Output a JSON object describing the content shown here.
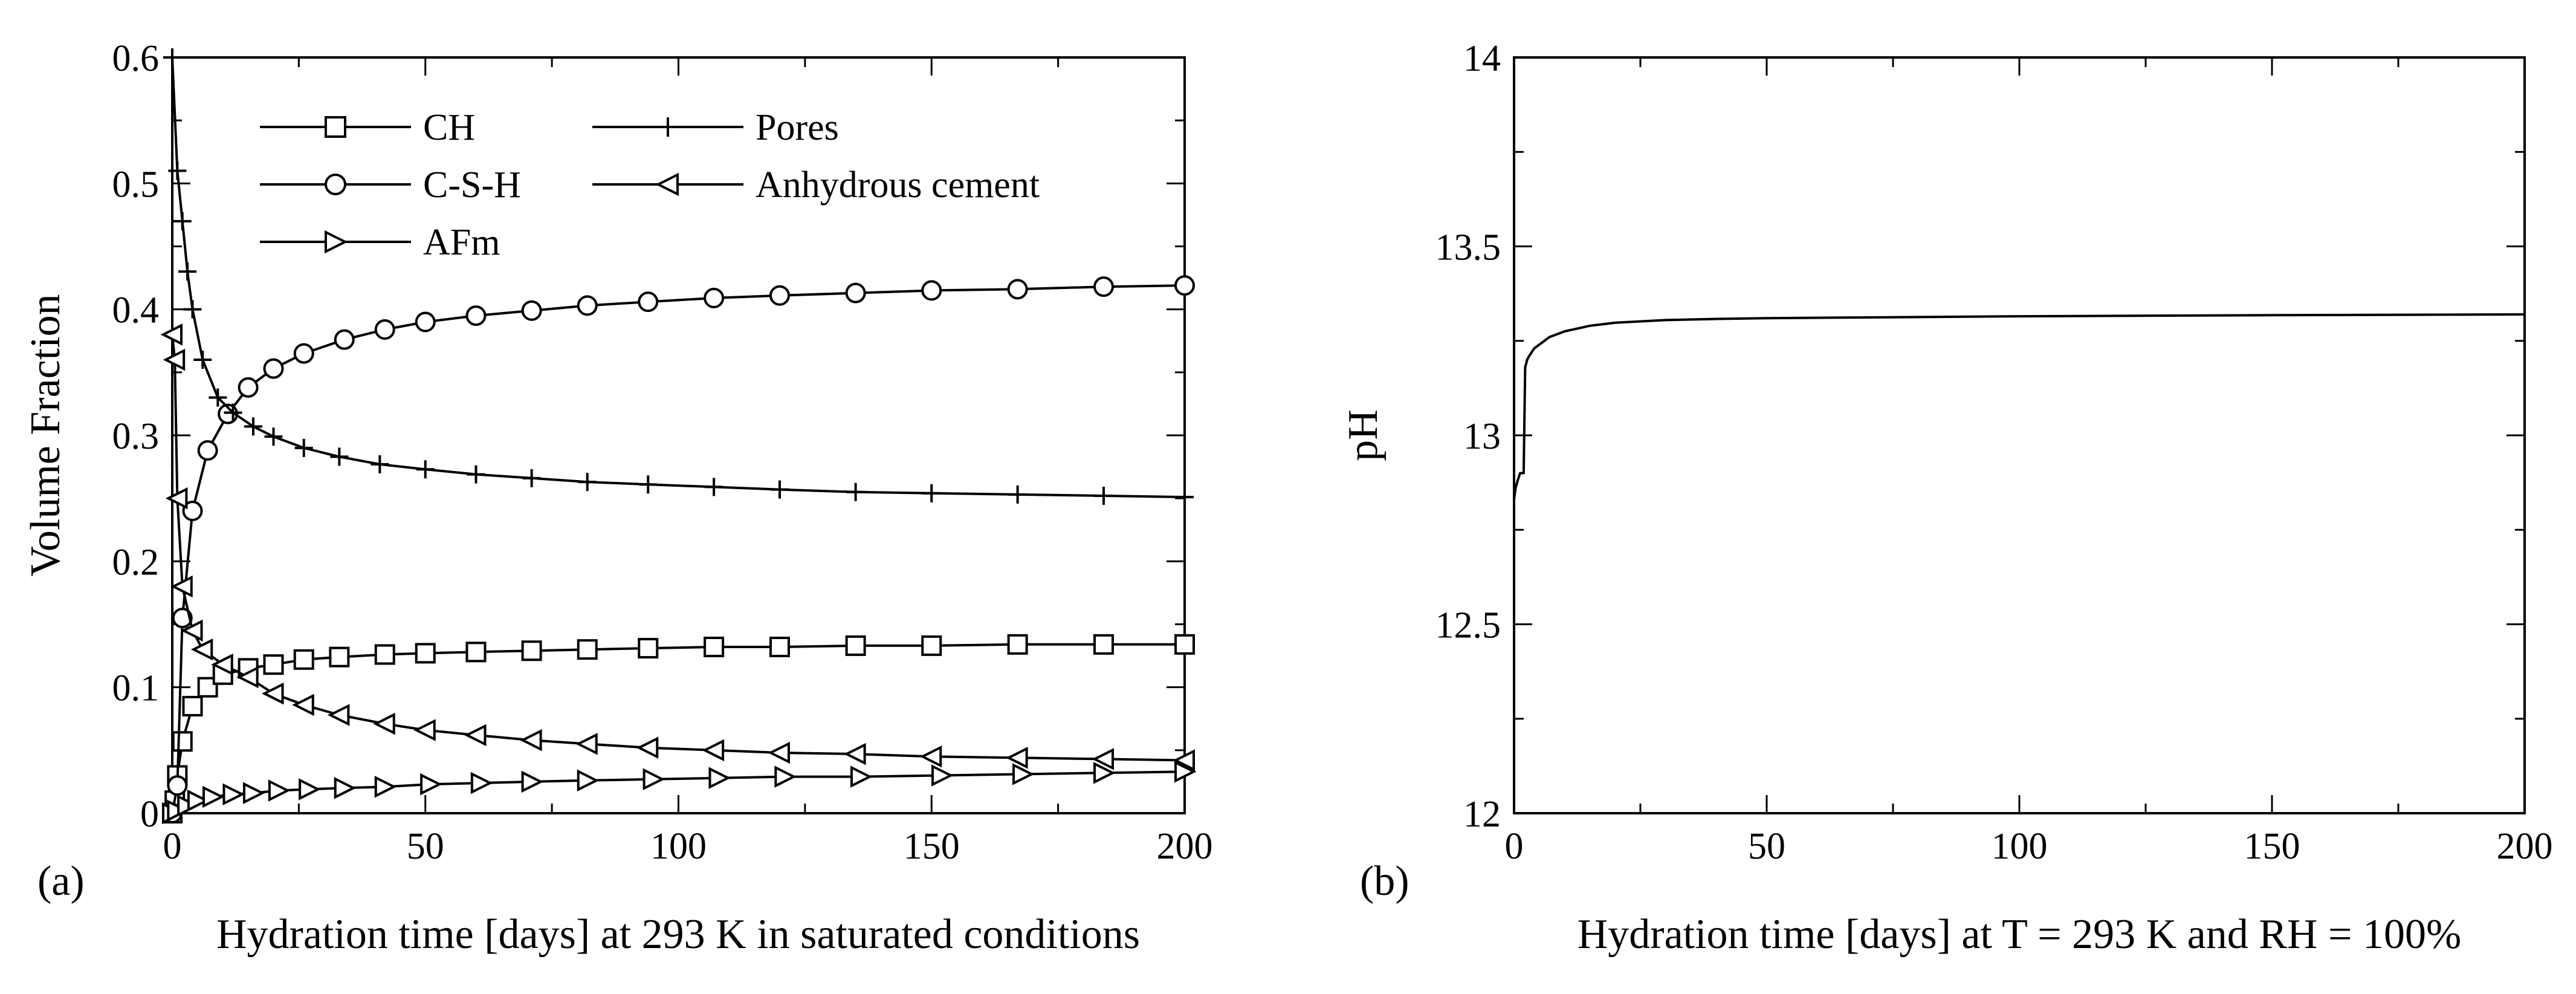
{
  "chart_data": [
    {
      "panel_label": "(a)",
      "type": "line",
      "xlabel": "Hydration time [days] at 293 K in saturated conditions",
      "ylabel": "Volume Fraction",
      "xlim": [
        0,
        200
      ],
      "ylim": [
        0,
        0.6
      ],
      "x_ticks": [
        "0",
        "50",
        "100",
        "150",
        "200"
      ],
      "y_ticks": [
        "0",
        "0.1",
        "0.2",
        "0.3",
        "0.4",
        "0.5",
        "0.6"
      ],
      "grid": false,
      "legend_position": "top",
      "series": [
        {
          "name": "CH",
          "marker": "square",
          "x": [
            0,
            0.5,
            1,
            2,
            4,
            7,
            10,
            15,
            20,
            26,
            33,
            42,
            50,
            60,
            71,
            82,
            94,
            107,
            120,
            135,
            150,
            167,
            184,
            200
          ],
          "y": [
            0,
            0.01,
            0.03,
            0.057,
            0.085,
            0.1,
            0.11,
            0.115,
            0.118,
            0.122,
            0.124,
            0.126,
            0.127,
            0.128,
            0.129,
            0.13,
            0.131,
            0.132,
            0.132,
            0.133,
            0.133,
            0.134,
            0.134,
            0.134
          ]
        },
        {
          "name": "C-S-H",
          "marker": "circle",
          "x": [
            0,
            1,
            2,
            4,
            7,
            11,
            15,
            20,
            26,
            34,
            42,
            50,
            60,
            71,
            82,
            94,
            107,
            120,
            135,
            150,
            167,
            184,
            200
          ],
          "y": [
            0,
            0.022,
            0.155,
            0.24,
            0.288,
            0.317,
            0.338,
            0.353,
            0.365,
            0.376,
            0.384,
            0.39,
            0.395,
            0.399,
            0.403,
            0.406,
            0.409,
            0.411,
            0.413,
            0.415,
            0.416,
            0.418,
            0.419
          ]
        },
        {
          "name": "AFm",
          "marker": "triangle-right",
          "x": [
            0,
            1,
            3,
            5,
            8,
            12,
            16,
            21,
            27,
            34,
            42,
            51,
            61,
            71,
            82,
            95,
            108,
            121,
            136,
            152,
            168,
            184,
            200
          ],
          "y": [
            0,
            0.002,
            0.006,
            0.01,
            0.013,
            0.015,
            0.016,
            0.018,
            0.019,
            0.02,
            0.021,
            0.023,
            0.024,
            0.025,
            0.026,
            0.027,
            0.028,
            0.029,
            0.029,
            0.03,
            0.031,
            0.032,
            0.033
          ]
        },
        {
          "name": "Pores",
          "marker": "plus",
          "x": [
            0,
            1,
            2,
            3,
            4,
            6,
            9,
            12,
            16,
            20,
            26,
            33,
            41,
            50,
            60,
            71,
            82,
            94,
            107,
            120,
            135,
            150,
            167,
            184,
            200
          ],
          "y": [
            0.6,
            0.51,
            0.47,
            0.43,
            0.4,
            0.36,
            0.33,
            0.318,
            0.307,
            0.299,
            0.29,
            0.283,
            0.277,
            0.273,
            0.269,
            0.266,
            0.263,
            0.261,
            0.259,
            0.257,
            0.255,
            0.254,
            0.253,
            0.252,
            0.251
          ]
        },
        {
          "name": "Anhydrous cement",
          "marker": "triangle-left",
          "x": [
            0,
            0.5,
            1,
            2,
            4,
            6,
            10,
            15,
            20,
            26,
            33,
            42,
            50,
            60,
            71,
            82,
            94,
            107,
            120,
            135,
            150,
            167,
            184,
            200
          ],
          "y": [
            0.38,
            0.36,
            0.25,
            0.18,
            0.145,
            0.13,
            0.118,
            0.108,
            0.095,
            0.086,
            0.078,
            0.071,
            0.066,
            0.062,
            0.058,
            0.055,
            0.052,
            0.05,
            0.048,
            0.047,
            0.045,
            0.044,
            0.043,
            0.042
          ]
        }
      ]
    },
    {
      "panel_label": "(b)",
      "type": "line",
      "xlabel": "Hydration time [days] at T = 293 K and RH = 100%",
      "ylabel": "pH",
      "xlim": [
        0,
        200
      ],
      "ylim": [
        12,
        14
      ],
      "x_ticks": [
        "0",
        "50",
        "100",
        "150",
        "200"
      ],
      "y_ticks": [
        "12",
        "12.5",
        "13",
        "13.5",
        "14"
      ],
      "grid": false,
      "series": [
        {
          "x": [
            0,
            0.3,
            0.7,
            1.2,
            1.6,
            1.9,
            2.2,
            2.6,
            3,
            4,
            5,
            7,
            10,
            15,
            20,
            30,
            40,
            50,
            70,
            100,
            150,
            200
          ],
          "y": [
            12.83,
            12.86,
            12.88,
            12.9,
            12.9,
            12.9,
            13.18,
            13.2,
            13.21,
            13.23,
            13.24,
            13.26,
            13.275,
            13.29,
            13.298,
            13.305,
            13.308,
            13.31,
            13.312,
            13.315,
            13.318,
            13.32
          ]
        }
      ]
    }
  ]
}
